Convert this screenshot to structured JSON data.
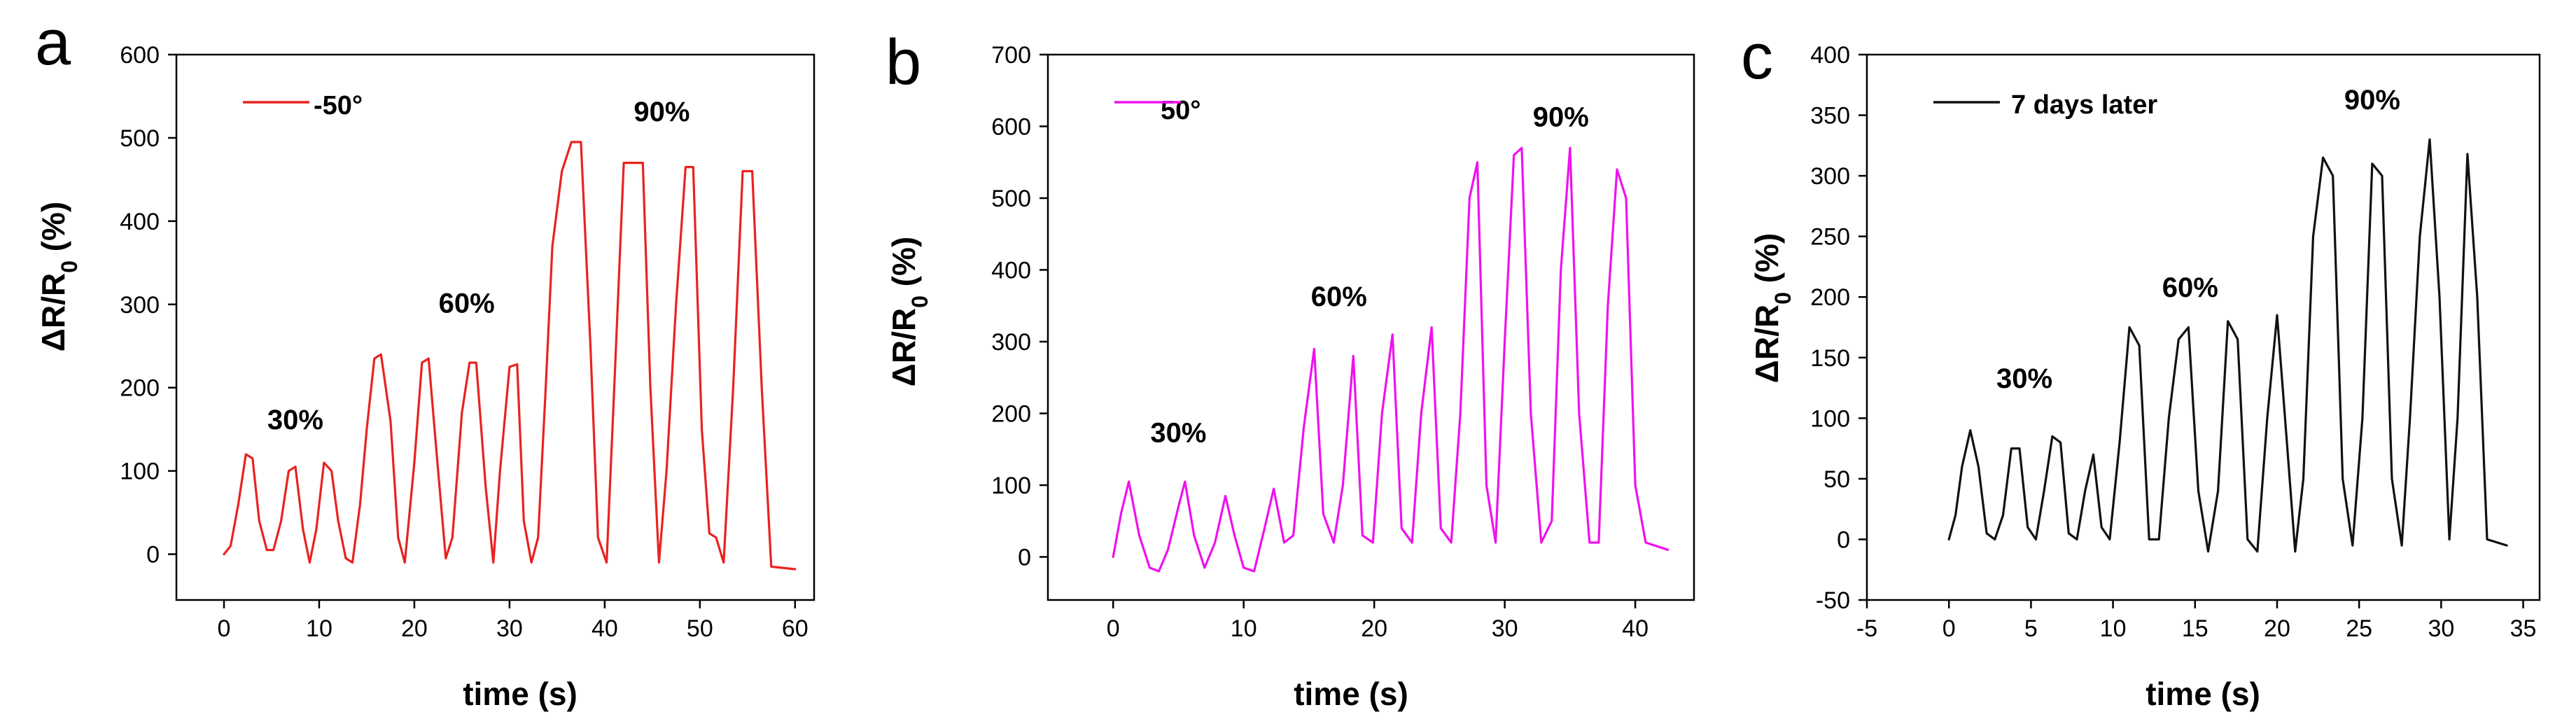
{
  "chart_data": [
    {
      "type": "line",
      "panel_label": "a",
      "xlabel": "time  (s)",
      "ylabel": "ΔR/R",
      "ylabel_sub": "0",
      "ylabel_suffix": " (%)",
      "xlim": [
        -5,
        62
      ],
      "ylim": [
        -55,
        600
      ],
      "xticks": [
        0,
        10,
        20,
        30,
        40,
        50,
        60
      ],
      "yticks": [
        0,
        100,
        200,
        300,
        400,
        500,
        600
      ],
      "color": "#e8231f",
      "legend": "-50°",
      "legend_position": "top-left",
      "annotations": [
        {
          "text": "30%",
          "x": 7.5,
          "y": 150
        },
        {
          "text": "60%",
          "x": 25.5,
          "y": 290
        },
        {
          "text": "90%",
          "x": 46,
          "y": 520
        }
      ],
      "series": [
        {
          "name": "-50°",
          "x": [
            0,
            0.7,
            1.5,
            2.3,
            3.0,
            3.7,
            4.5,
            5.2,
            6.0,
            6.8,
            7.5,
            8.3,
            9.0,
            9.7,
            10.5,
            11.3,
            12.0,
            12.8,
            13.5,
            14.3,
            15.0,
            15.8,
            16.5,
            17.5,
            18.3,
            19.0,
            20.0,
            20.8,
            21.5,
            22.5,
            23.3,
            24.0,
            25.0,
            25.8,
            26.5,
            27.5,
            28.3,
            29.0,
            30.0,
            30.8,
            31.5,
            32.3,
            33.0,
            33.8,
            34.5,
            35.5,
            36.5,
            37.5,
            38.5,
            39.3,
            40.2,
            41.0,
            42.0,
            43.0,
            44.0,
            44.8,
            45.7,
            46.5,
            47.5,
            48.5,
            49.3,
            50.2,
            51.0,
            51.7,
            52.5,
            53.5,
            54.5,
            55.5,
            56.5,
            57.5,
            60.0
          ],
          "y": [
            0,
            10,
            60,
            120,
            115,
            40,
            5,
            5,
            40,
            100,
            105,
            30,
            -10,
            30,
            110,
            100,
            40,
            -5,
            -10,
            60,
            150,
            235,
            240,
            160,
            20,
            -10,
            110,
            230,
            235,
            100,
            -5,
            20,
            170,
            230,
            230,
            80,
            -10,
            100,
            225,
            228,
            40,
            -10,
            20,
            200,
            370,
            460,
            495,
            495,
            250,
            20,
            -10,
            200,
            470,
            470,
            470,
            200,
            -10,
            100,
            300,
            465,
            465,
            150,
            25,
            20,
            -10,
            200,
            460,
            460,
            200,
            -15,
            -18
          ]
        }
      ]
    },
    {
      "type": "line",
      "panel_label": "b",
      "xlabel": "time  (s)",
      "ylabel": "ΔR/R",
      "ylabel_sub": "0",
      "ylabel_suffix": " (%)",
      "xlim": [
        -5,
        44.5
      ],
      "ylim": [
        -60,
        700
      ],
      "xticks": [
        0,
        10,
        20,
        30,
        40
      ],
      "yticks": [
        0,
        100,
        200,
        300,
        400,
        500,
        600,
        700
      ],
      "color": "#ef11ef",
      "legend": "50°",
      "legend_position": "top-left",
      "annotations": [
        {
          "text": "30%",
          "x": 5,
          "y": 160
        },
        {
          "text": "60%",
          "x": 17.3,
          "y": 350
        },
        {
          "text": "90%",
          "x": 34.3,
          "y": 600
        }
      ],
      "series": [
        {
          "name": "50°",
          "x": [
            0,
            0.6,
            1.2,
            2.0,
            2.8,
            3.5,
            4.2,
            5.0,
            5.5,
            6.2,
            7.0,
            7.8,
            8.6,
            9.3,
            10.0,
            10.8,
            11.6,
            12.3,
            13.1,
            13.8,
            14.6,
            15.4,
            16.1,
            16.9,
            17.6,
            18.4,
            19.1,
            19.9,
            20.6,
            21.4,
            22.1,
            22.9,
            23.6,
            24.4,
            25.1,
            25.9,
            26.6,
            27.3,
            27.9,
            28.6,
            29.3,
            30.0,
            30.7,
            31.3,
            32.0,
            32.8,
            33.6,
            34.3,
            35.0,
            35.7,
            36.5,
            37.2,
            37.9,
            38.6,
            39.3,
            40.0,
            40.8,
            42.5
          ],
          "y": [
            0,
            60,
            105,
            30,
            -15,
            -20,
            10,
            70,
            105,
            30,
            -15,
            20,
            85,
            30,
            -15,
            -20,
            40,
            95,
            20,
            30,
            180,
            290,
            60,
            20,
            100,
            280,
            30,
            20,
            200,
            310,
            40,
            20,
            200,
            320,
            40,
            20,
            200,
            500,
            550,
            100,
            20,
            300,
            560,
            570,
            200,
            20,
            50,
            400,
            570,
            200,
            20,
            20,
            350,
            540,
            500,
            100,
            20,
            10
          ]
        }
      ]
    },
    {
      "type": "line",
      "panel_label": "c",
      "xlabel": "time  (s)",
      "ylabel": "ΔR/R",
      "ylabel_sub": "0",
      "ylabel_suffix": " (%)",
      "xlim": [
        -5,
        36
      ],
      "ylim": [
        -50,
        400
      ],
      "xticks": [
        -5,
        0,
        5,
        10,
        15,
        20,
        25,
        30,
        35
      ],
      "yticks": [
        -50,
        0,
        50,
        100,
        150,
        200,
        250,
        300,
        350,
        400
      ],
      "color": "#111111",
      "legend": "7 days later",
      "legend_position": "top-left",
      "annotations": [
        {
          "text": "30%",
          "x": 4.6,
          "y": 125
        },
        {
          "text": "60%",
          "x": 14.7,
          "y": 200
        },
        {
          "text": "90%",
          "x": 25.8,
          "y": 355
        }
      ],
      "series": [
        {
          "name": "7 days later",
          "x": [
            0,
            0.4,
            0.8,
            1.3,
            1.8,
            2.3,
            2.8,
            3.3,
            3.8,
            4.3,
            4.8,
            5.3,
            5.8,
            6.3,
            6.8,
            7.3,
            7.8,
            8.3,
            8.8,
            9.3,
            9.8,
            10.4,
            11.0,
            11.6,
            12.2,
            12.8,
            13.4,
            14.0,
            14.6,
            15.2,
            15.8,
            16.4,
            17.0,
            17.6,
            18.2,
            18.8,
            19.4,
            20.0,
            20.6,
            21.1,
            21.6,
            22.2,
            22.8,
            23.4,
            24.0,
            24.6,
            25.2,
            25.8,
            26.4,
            27.0,
            27.6,
            28.1,
            28.7,
            29.3,
            29.9,
            30.5,
            31.0,
            31.6,
            32.2,
            32.8,
            34.0
          ],
          "y": [
            0,
            20,
            60,
            90,
            60,
            5,
            0,
            20,
            75,
            75,
            10,
            0,
            40,
            85,
            80,
            5,
            0,
            40,
            70,
            10,
            0,
            80,
            175,
            160,
            0,
            0,
            100,
            165,
            175,
            40,
            -10,
            40,
            180,
            165,
            0,
            -10,
            100,
            185,
            80,
            -10,
            50,
            250,
            315,
            300,
            50,
            -5,
            100,
            310,
            300,
            50,
            -5,
            100,
            250,
            330,
            200,
            0,
            100,
            318,
            200,
            0,
            -5
          ]
        }
      ]
    }
  ]
}
